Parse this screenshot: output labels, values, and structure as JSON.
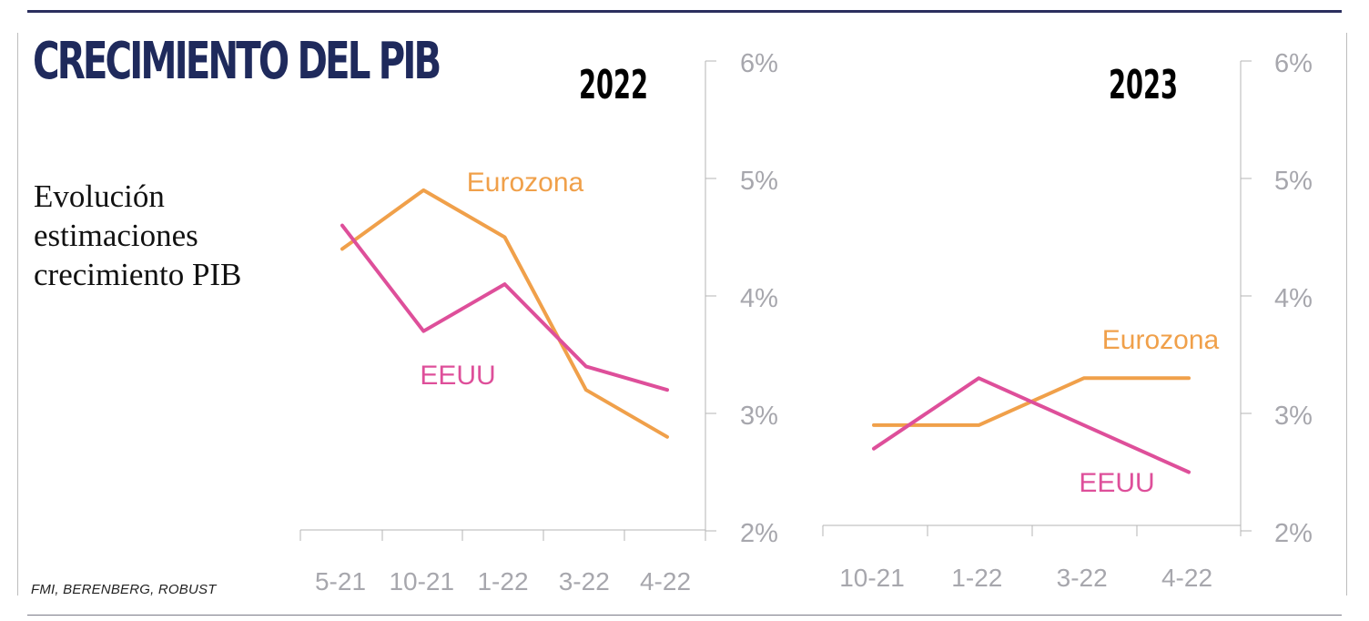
{
  "title": "CRECIMIENTO DEL PIB",
  "subtitle": "Evolución estimaciones crecimiento PIB",
  "source": "FMI, BERENBERG, ROBUST",
  "colors": {
    "eurozona": "#f0a04a",
    "eeuu": "#de4f9a",
    "title": "#1f2a5c",
    "axis": "#b5b5b5",
    "tick_text": "#a7a7ad"
  },
  "chart_data": [
    {
      "type": "line",
      "title": "2022",
      "x": [
        "5-21",
        "10-21",
        "1-22",
        "3-22",
        "4-22"
      ],
      "y_ticks": [
        "2%",
        "3%",
        "4%",
        "5%",
        "6%"
      ],
      "ylim": [
        2,
        6
      ],
      "grid": false,
      "series": [
        {
          "name": "Eurozona",
          "values": [
            4.4,
            4.9,
            4.5,
            3.2,
            2.8
          ]
        },
        {
          "name": "EEUU",
          "values": [
            4.6,
            3.7,
            4.1,
            3.4,
            3.2
          ]
        }
      ]
    },
    {
      "type": "line",
      "title": "2023",
      "x": [
        "10-21",
        "1-22",
        "3-22",
        "4-22"
      ],
      "y_ticks": [
        "2%",
        "3%",
        "4%",
        "5%",
        "6%"
      ],
      "ylim": [
        2,
        6
      ],
      "grid": false,
      "series": [
        {
          "name": "Eurozona",
          "values": [
            2.9,
            2.9,
            3.3,
            3.3
          ]
        },
        {
          "name": "EEUU",
          "values": [
            2.7,
            3.3,
            2.9,
            2.5
          ]
        }
      ]
    }
  ]
}
